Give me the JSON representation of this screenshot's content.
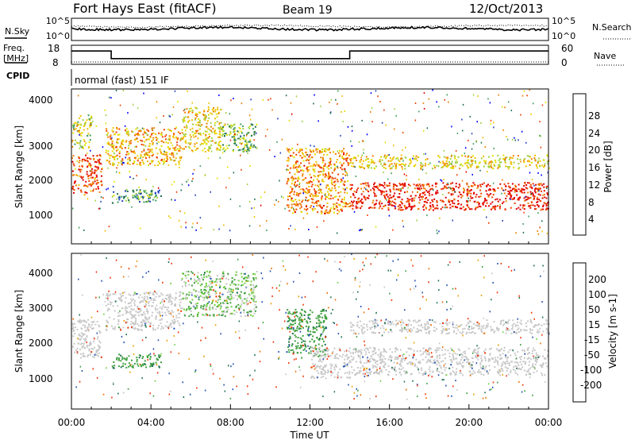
{
  "header": {
    "station": "Fort Hays East (fitACF)",
    "beam": "Beam 19",
    "date": "12/Oct/2013"
  },
  "noise_panel": {
    "left_label": "N.Sky",
    "right_label": "N.Search",
    "left_ticks": [
      "10^5",
      "10^0"
    ],
    "right_ticks": [
      "10^5",
      "10^0"
    ]
  },
  "freq_panel": {
    "left_label_line1": "Freq.",
    "left_label_line2": "[MHz]",
    "right_label": "Nave",
    "left_ticks": [
      "18",
      "8"
    ],
    "right_ticks": [
      "60",
      "0"
    ],
    "freq_mhz_segments": [
      {
        "start": "00:00",
        "end": "02:00",
        "value": 15
      },
      {
        "start": "02:00",
        "end": "14:00",
        "value": 11
      },
      {
        "start": "14:00",
        "end": "24:00",
        "value": 15
      }
    ]
  },
  "cpid": {
    "label": "CPID",
    "program": "normal (fast) 151 IF"
  },
  "power_panel": {
    "ylabel": "Slant Range [km]",
    "yticks": [
      "4000",
      "3000",
      "2000",
      "1000"
    ],
    "colorbar_label": "Power [dB]",
    "colorbar_ticks": [
      "28",
      "24",
      "20",
      "16",
      "12",
      "8",
      "4"
    ],
    "colors": [
      "#0000ff",
      "#2040c0",
      "#207050",
      "#40a060",
      "#a0d040",
      "#e0e000",
      "#f0c000",
      "#f08000",
      "#f04000",
      "#e00000"
    ]
  },
  "velocity_panel": {
    "ylabel": "Slant Range [km]",
    "yticks": [
      "4000",
      "3000",
      "2000",
      "1000"
    ],
    "colorbar_label": "Velocity [m s-1]",
    "colorbar_ticks": [
      "200",
      "100",
      "50",
      "15",
      "-15",
      "-50",
      "-100",
      "-200"
    ],
    "colors": [
      "#1020c0",
      "#2050b0",
      "#207050",
      "#40a040",
      "#70d040",
      "#c8c8c8",
      "#e8a000",
      "#f07000",
      "#f03000",
      "#e00000"
    ]
  },
  "xaxis": {
    "label": "Time UT",
    "ticks": [
      "00:00",
      "04:00",
      "08:00",
      "12:00",
      "16:00",
      "20:00",
      "00:00"
    ]
  },
  "chart_data": {
    "type": "heatmap",
    "x_range_hours": [
      0,
      24
    ],
    "y_range_km": [
      0,
      4500
    ],
    "power_regions": [
      {
        "t0": 0.0,
        "t1": 1.5,
        "r0": 1500,
        "r1": 2600,
        "db": 26
      },
      {
        "t0": 0.0,
        "t1": 1.0,
        "r0": 2800,
        "r1": 3800,
        "db": 16
      },
      {
        "t0": 1.7,
        "t1": 5.5,
        "r0": 2300,
        "r1": 3400,
        "db": 20
      },
      {
        "t0": 5.5,
        "t1": 7.5,
        "r0": 2700,
        "r1": 4000,
        "db": 18
      },
      {
        "t0": 7.5,
        "t1": 9.3,
        "r0": 2700,
        "r1": 3500,
        "db": 12
      },
      {
        "t0": 2.0,
        "t1": 4.5,
        "r0": 1200,
        "r1": 1600,
        "db": 10
      },
      {
        "t0": 10.8,
        "t1": 14.0,
        "r0": 900,
        "r1": 2800,
        "db": 22
      },
      {
        "t0": 14.0,
        "t1": 24.0,
        "r0": 1000,
        "r1": 1800,
        "db": 28
      },
      {
        "t0": 14.0,
        "t1": 24.0,
        "r0": 2200,
        "r1": 2600,
        "db": 18
      }
    ],
    "velocity_regions": [
      {
        "t0": 0.0,
        "t1": 1.5,
        "r0": 1500,
        "r1": 2600,
        "v": 0
      },
      {
        "t0": 1.7,
        "t1": 5.5,
        "r0": 2300,
        "r1": 3400,
        "v": 0
      },
      {
        "t0": 5.5,
        "t1": 9.3,
        "r0": 2700,
        "r1": 4000,
        "v": 20
      },
      {
        "t0": 2.0,
        "t1": 4.5,
        "r0": 1200,
        "r1": 1600,
        "v": 40
      },
      {
        "t0": 10.8,
        "t1": 12.8,
        "r0": 1500,
        "r1": 2900,
        "v": 40
      },
      {
        "t0": 12.0,
        "t1": 14.0,
        "r0": 900,
        "r1": 1800,
        "v": 0
      },
      {
        "t0": 14.0,
        "t1": 24.0,
        "r0": 1000,
        "r1": 1800,
        "v": 0
      },
      {
        "t0": 14.0,
        "t1": 24.0,
        "r0": 2200,
        "r1": 2600,
        "v": 0
      }
    ]
  }
}
